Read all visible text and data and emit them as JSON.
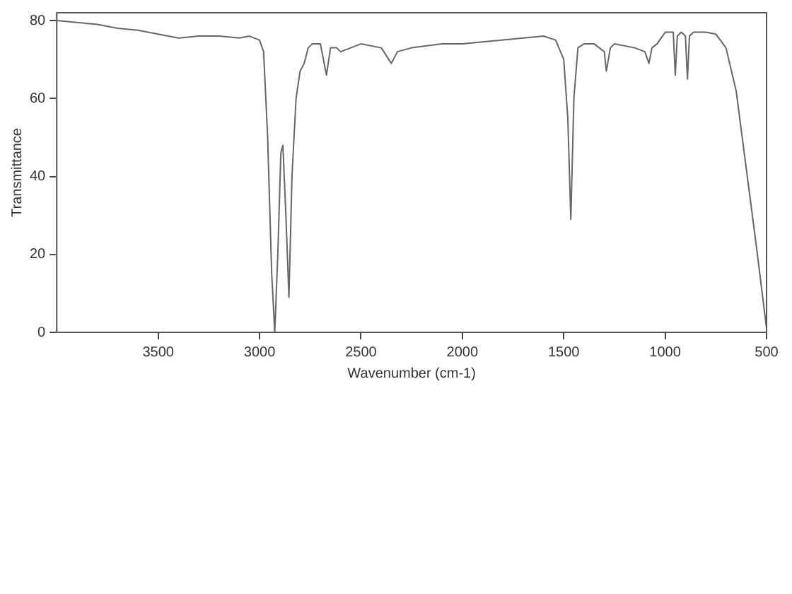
{
  "chart_data": {
    "type": "line",
    "xlabel": "Wavenumber (cm-1)",
    "ylabel": "Transmittance",
    "xlim": [
      4000,
      500
    ],
    "xticks": [
      3500,
      3000,
      2500,
      2000,
      1500,
      1000,
      500
    ],
    "ylim": [
      0,
      82
    ],
    "yticks": [
      0,
      20,
      40,
      60,
      80
    ],
    "grid": false,
    "legend": false,
    "marker": "none",
    "line_style": "solid",
    "series": [
      {
        "color": "#666666",
        "x": [
          4000,
          3900,
          3800,
          3700,
          3600,
          3500,
          3400,
          3300,
          3200,
          3100,
          3050,
          3000,
          2980,
          2960,
          2940,
          2925,
          2910,
          2895,
          2885,
          2870,
          2855,
          2840,
          2820,
          2800,
          2780,
          2760,
          2740,
          2700,
          2670,
          2650,
          2620,
          2600,
          2550,
          2500,
          2400,
          2350,
          2320,
          2250,
          2100,
          2000,
          1800,
          1600,
          1540,
          1500,
          1480,
          1465,
          1450,
          1430,
          1400,
          1350,
          1300,
          1290,
          1270,
          1250,
          1150,
          1100,
          1080,
          1065,
          1040,
          1000,
          960,
          950,
          940,
          920,
          900,
          890,
          880,
          860,
          800,
          750,
          700,
          650,
          600,
          550,
          500
        ],
        "values": [
          80,
          79.5,
          79,
          78,
          77.5,
          76.5,
          75.5,
          76,
          76,
          75.5,
          76,
          75,
          72,
          50,
          15,
          0,
          20,
          46,
          48,
          30,
          9,
          40,
          60,
          67,
          69,
          73,
          74,
          74,
          66,
          73,
          73,
          72,
          73,
          74,
          73,
          69,
          72,
          73,
          74,
          74,
          75,
          76,
          75,
          70,
          55,
          29,
          60,
          73,
          74,
          74,
          72,
          67,
          73,
          74,
          73,
          72,
          69,
          73,
          74,
          77,
          77,
          66,
          76,
          77,
          76,
          65,
          76,
          77,
          77,
          76.5,
          73,
          62,
          42,
          22,
          1
        ]
      }
    ]
  }
}
